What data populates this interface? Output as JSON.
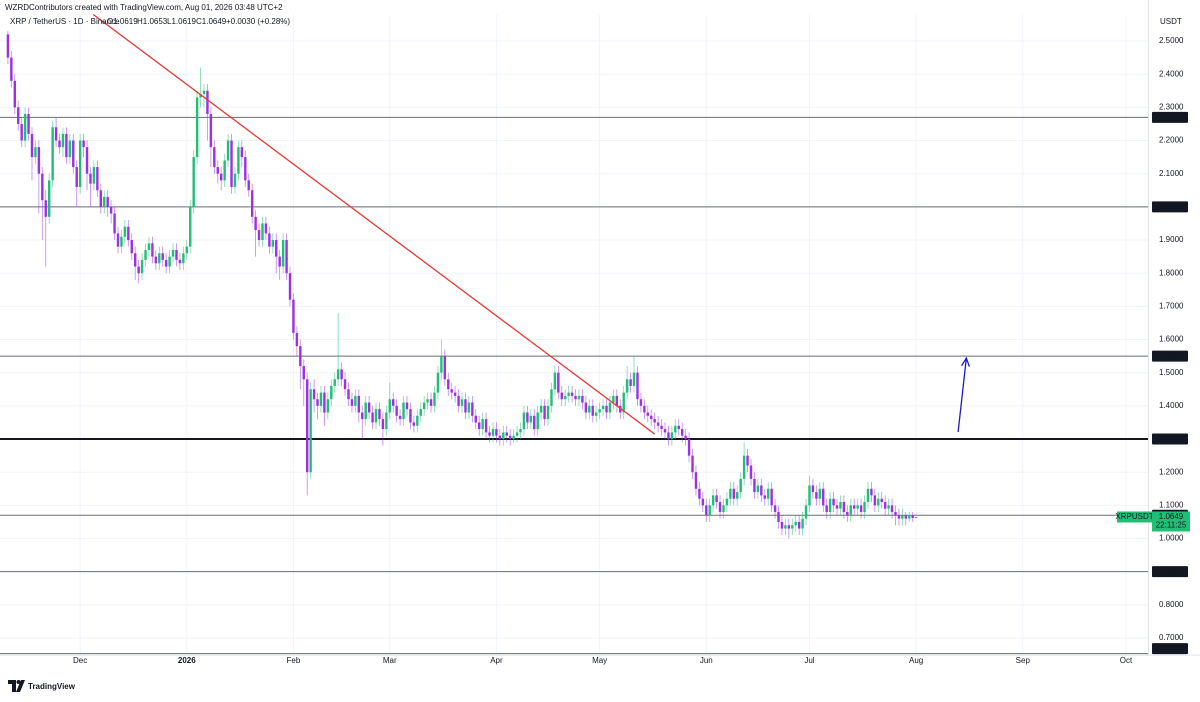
{
  "chart_data": {
    "type": "candlestick",
    "header": "WZRDContributors created with TradingView.com, Aug 01, 2026 03:48 UTC+2",
    "symbol": "XRP / TetherUS · 1D · Binance",
    "legend": [
      "O1.0619",
      "H1.0653",
      "L1.0619",
      "C1.0649",
      "+0.0030 (+0.28%)"
    ],
    "axis_unit": "USDT",
    "brand": "TradingView",
    "up_color": "#1fbf75",
    "down_color": "#9b30e6",
    "grid": true,
    "xlim": [
      -2.3,
      331.4
    ],
    "ylim": [
      0.65,
      2.58
    ],
    "xticks": [
      {
        "value": 21,
        "label": "Dec"
      },
      {
        "value": 52,
        "label": "2026"
      },
      {
        "value": 83,
        "label": "Feb"
      },
      {
        "value": 111,
        "label": "Mar"
      },
      {
        "value": 142,
        "label": "Apr"
      },
      {
        "value": 172,
        "label": "May"
      },
      {
        "value": 203,
        "label": "Jun"
      },
      {
        "value": 233,
        "label": "Jul"
      },
      {
        "value": 264,
        "label": "Aug"
      },
      {
        "value": 295,
        "label": "Sep"
      },
      {
        "value": 325,
        "label": "Oct"
      }
    ],
    "yticks": [
      {
        "value": 0.7,
        "label": "0.7000"
      },
      {
        "value": 0.8,
        "label": "0.8000"
      },
      {
        "value": 0.9,
        "label": "0.9000"
      },
      {
        "value": 1.0,
        "label": "1.0000"
      },
      {
        "value": 1.1,
        "label": "1.1000"
      },
      {
        "value": 1.2,
        "label": "1.2000"
      },
      {
        "value": 1.3,
        "label": "1.3000"
      },
      {
        "value": 1.4,
        "label": "1.4000"
      },
      {
        "value": 1.5,
        "label": "1.5000"
      },
      {
        "value": 1.6,
        "label": "1.6000"
      },
      {
        "value": 1.7,
        "label": "1.7000"
      },
      {
        "value": 1.8,
        "label": "1.8000"
      },
      {
        "value": 1.9,
        "label": "1.9000"
      },
      {
        "value": 2.0,
        "label": "2.0000"
      },
      {
        "value": 2.1,
        "label": "2.1000"
      },
      {
        "value": 2.2,
        "label": "2.2000"
      },
      {
        "value": 2.3,
        "label": "2.3000"
      },
      {
        "value": 2.4,
        "label": "2.4000"
      },
      {
        "value": 2.5,
        "label": "2.5000"
      }
    ],
    "levels": [
      {
        "value": 2.27,
        "label": "2.2700",
        "width": 1
      },
      {
        "value": 2.0,
        "label": "2.0000",
        "width": 1
      },
      {
        "value": 1.55,
        "label": "1.5500",
        "width": 1
      },
      {
        "value": 1.3,
        "label": "1.3000",
        "width": 2
      },
      {
        "value": 1.07,
        "label": "1.0700",
        "width": 1
      },
      {
        "value": 0.9,
        "label": "0.9000",
        "width": 1
      },
      {
        "value": 0.65,
        "label": "0.6500",
        "width": 1
      }
    ],
    "last_price": {
      "symbol": "XRPUSDT",
      "value": 1.0649,
      "countdown": "22:11:25"
    },
    "drawings": [
      {
        "kind": "trendline",
        "color": "#e53935",
        "x": [
          24.8,
          188
        ],
        "y": [
          2.58,
          1.315
        ]
      },
      {
        "kind": "arrow",
        "color": "#1a1acc",
        "x": [
          276.2,
          278.6
        ],
        "y": [
          1.321,
          1.544
        ]
      }
    ],
    "open": [
      2.52,
      2.45,
      2.38,
      2.3,
      2.25,
      2.2,
      2.28,
      2.22,
      2.15,
      2.18,
      2.1,
      2.02,
      1.97,
      2.08,
      2.24,
      2.2,
      2.18,
      2.22,
      2.15,
      2.2,
      2.12,
      2.06,
      2.2,
      2.18,
      2.1,
      2.07,
      2.12,
      2.05,
      2.0,
      2.03,
      2.0,
      1.98,
      1.92,
      1.88,
      1.91,
      1.94,
      1.9,
      1.86,
      1.82,
      1.8,
      1.84,
      1.87,
      1.89,
      1.85,
      1.83,
      1.86,
      1.84,
      1.82,
      1.85,
      1.87,
      1.84,
      1.83,
      1.86,
      1.88,
      2.0,
      2.15,
      2.33,
      2.34,
      2.35,
      2.28,
      2.18,
      2.12,
      2.1,
      2.08,
      2.14,
      2.2,
      2.06,
      2.1,
      2.18,
      2.15,
      2.08,
      2.05,
      1.97,
      1.93,
      1.9,
      1.95,
      1.92,
      1.88,
      1.9,
      1.85,
      1.82,
      1.9,
      1.8,
      1.72,
      1.62,
      1.58,
      1.52,
      1.48,
      1.2,
      1.45,
      1.42,
      1.4,
      1.44,
      1.38,
      1.42,
      1.46,
      1.48,
      1.51,
      1.48,
      1.45,
      1.42,
      1.4,
      1.43,
      1.38,
      1.36,
      1.41,
      1.38,
      1.35,
      1.39,
      1.36,
      1.33,
      1.38,
      1.42,
      1.4,
      1.37,
      1.36,
      1.41,
      1.39,
      1.35,
      1.34,
      1.37,
      1.39,
      1.41,
      1.42,
      1.4,
      1.44,
      1.5,
      1.55,
      1.48,
      1.45,
      1.44,
      1.43,
      1.4,
      1.42,
      1.38,
      1.41,
      1.37,
      1.35,
      1.33,
      1.36,
      1.32,
      1.31,
      1.33,
      1.31,
      1.3,
      1.32,
      1.31,
      1.3,
      1.31,
      1.32,
      1.33,
      1.38,
      1.35,
      1.37,
      1.33,
      1.38,
      1.4,
      1.36,
      1.4,
      1.45,
      1.5,
      1.44,
      1.42,
      1.43,
      1.44,
      1.43,
      1.42,
      1.43,
      1.41,
      1.38,
      1.4,
      1.37,
      1.38,
      1.39,
      1.4,
      1.38,
      1.41,
      1.43,
      1.4,
      1.38,
      1.44,
      1.48,
      1.46,
      1.5,
      1.42,
      1.4,
      1.38,
      1.37,
      1.36,
      1.35,
      1.34,
      1.33,
      1.32,
      1.3,
      1.32,
      1.34,
      1.33,
      1.31,
      1.3,
      1.25,
      1.2,
      1.15,
      1.12,
      1.1,
      1.07,
      1.1,
      1.13,
      1.11,
      1.08,
      1.1,
      1.12,
      1.15,
      1.12,
      1.14,
      1.18,
      1.25,
      1.22,
      1.18,
      1.14,
      1.16,
      1.13,
      1.12,
      1.15,
      1.1,
      1.08,
      1.05,
      1.03,
      1.04,
      1.03,
      1.04,
      1.05,
      1.03,
      1.06,
      1.1,
      1.16,
      1.14,
      1.12,
      1.15,
      1.1,
      1.08,
      1.12,
      1.1,
      1.09,
      1.11,
      1.08,
      1.07,
      1.1,
      1.09,
      1.1,
      1.08,
      1.11,
      1.15,
      1.13,
      1.1,
      1.12,
      1.11,
      1.09,
      1.1,
      1.08,
      1.07,
      1.06,
      1.07,
      1.06,
      1.07,
      1.0619
    ],
    "high": [
      2.53,
      2.47,
      2.4,
      2.32,
      2.27,
      2.3,
      2.3,
      2.24,
      2.2,
      2.2,
      2.12,
      2.05,
      2.1,
      2.26,
      2.27,
      2.22,
      2.24,
      2.24,
      2.22,
      2.22,
      2.14,
      2.22,
      2.22,
      2.2,
      2.12,
      2.14,
      2.14,
      2.07,
      2.05,
      2.05,
      2.02,
      2.0,
      1.94,
      1.93,
      1.96,
      1.96,
      1.92,
      1.88,
      1.84,
      1.86,
      1.89,
      1.91,
      1.91,
      1.87,
      1.88,
      1.88,
      1.86,
      1.87,
      1.89,
      1.89,
      1.86,
      1.88,
      1.9,
      2.02,
      2.17,
      2.35,
      2.42,
      2.37,
      2.37,
      2.3,
      2.2,
      2.14,
      2.12,
      2.16,
      2.22,
      2.22,
      2.12,
      2.2,
      2.2,
      2.17,
      2.1,
      2.07,
      1.99,
      1.95,
      1.97,
      1.97,
      1.94,
      1.92,
      1.92,
      1.87,
      1.92,
      1.92,
      1.82,
      1.74,
      1.64,
      1.6,
      1.54,
      1.5,
      1.47,
      1.48,
      1.44,
      1.46,
      1.46,
      1.44,
      1.48,
      1.5,
      1.68,
      1.53,
      1.5,
      1.47,
      1.44,
      1.45,
      1.45,
      1.4,
      1.43,
      1.43,
      1.4,
      1.41,
      1.41,
      1.38,
      1.4,
      1.47,
      1.44,
      1.42,
      1.39,
      1.43,
      1.43,
      1.41,
      1.37,
      1.39,
      1.41,
      1.43,
      1.44,
      1.44,
      1.46,
      1.52,
      1.6,
      1.57,
      1.5,
      1.47,
      1.46,
      1.45,
      1.44,
      1.44,
      1.43,
      1.43,
      1.39,
      1.37,
      1.38,
      1.38,
      1.34,
      1.35,
      1.35,
      1.33,
      1.34,
      1.34,
      1.33,
      1.33,
      1.34,
      1.35,
      1.4,
      1.4,
      1.39,
      1.39,
      1.4,
      1.42,
      1.42,
      1.42,
      1.47,
      1.52,
      1.52,
      1.46,
      1.45,
      1.46,
      1.46,
      1.45,
      1.45,
      1.45,
      1.43,
      1.42,
      1.42,
      1.4,
      1.41,
      1.42,
      1.42,
      1.43,
      1.45,
      1.45,
      1.42,
      1.46,
      1.52,
      1.5,
      1.55,
      1.52,
      1.44,
      1.42,
      1.4,
      1.39,
      1.38,
      1.37,
      1.36,
      1.35,
      1.34,
      1.34,
      1.36,
      1.36,
      1.35,
      1.33,
      1.32,
      1.27,
      1.22,
      1.17,
      1.14,
      1.12,
      1.12,
      1.15,
      1.15,
      1.13,
      1.12,
      1.14,
      1.17,
      1.17,
      1.16,
      1.2,
      1.29,
      1.27,
      1.24,
      1.2,
      1.18,
      1.18,
      1.15,
      1.17,
      1.17,
      1.12,
      1.1,
      1.07,
      1.06,
      1.06,
      1.06,
      1.07,
      1.07,
      1.08,
      1.12,
      1.19,
      1.18,
      1.16,
      1.17,
      1.17,
      1.12,
      1.14,
      1.14,
      1.12,
      1.13,
      1.13,
      1.1,
      1.12,
      1.12,
      1.12,
      1.12,
      1.13,
      1.17,
      1.17,
      1.15,
      1.14,
      1.14,
      1.13,
      1.12,
      1.12,
      1.1,
      1.09,
      1.09,
      1.08,
      1.08,
      1.08,
      1.0653
    ],
    "low": [
      2.43,
      2.36,
      2.28,
      2.23,
      2.18,
      2.18,
      2.2,
      2.08,
      2.13,
      1.98,
      1.9,
      1.82,
      1.95,
      2.06,
      2.18,
      2.16,
      2.15,
      2.13,
      2.13,
      2.1,
      2.0,
      2.04,
      2.15,
      2.05,
      2.0,
      2.05,
      2.03,
      1.98,
      1.98,
      1.97,
      1.95,
      1.9,
      1.86,
      1.86,
      1.89,
      1.88,
      1.84,
      1.78,
      1.77,
      1.78,
      1.82,
      1.85,
      1.83,
      1.81,
      1.81,
      1.82,
      1.8,
      1.8,
      1.83,
      1.82,
      1.81,
      1.81,
      1.84,
      1.86,
      1.98,
      2.13,
      2.3,
      2.3,
      2.2,
      2.12,
      2.1,
      2.07,
      2.05,
      2.06,
      2.12,
      2.04,
      2.04,
      2.08,
      2.12,
      2.06,
      2.03,
      1.95,
      1.85,
      1.88,
      1.88,
      1.9,
      1.86,
      1.86,
      1.8,
      1.78,
      1.8,
      1.78,
      1.7,
      1.6,
      1.55,
      1.45,
      1.4,
      1.13,
      1.18,
      1.38,
      1.36,
      1.38,
      1.34,
      1.36,
      1.4,
      1.44,
      1.46,
      1.46,
      1.43,
      1.4,
      1.38,
      1.38,
      1.35,
      1.3,
      1.34,
      1.36,
      1.33,
      1.33,
      1.34,
      1.28,
      1.31,
      1.36,
      1.38,
      1.35,
      1.34,
      1.34,
      1.37,
      1.33,
      1.32,
      1.32,
      1.35,
      1.37,
      1.39,
      1.38,
      1.38,
      1.42,
      1.48,
      1.46,
      1.43,
      1.42,
      1.41,
      1.38,
      1.38,
      1.36,
      1.36,
      1.35,
      1.33,
      1.31,
      1.31,
      1.3,
      1.29,
      1.29,
      1.29,
      1.28,
      1.28,
      1.29,
      1.28,
      1.29,
      1.29,
      1.3,
      1.31,
      1.33,
      1.33,
      1.31,
      1.31,
      1.36,
      1.34,
      1.34,
      1.38,
      1.43,
      1.42,
      1.4,
      1.4,
      1.41,
      1.41,
      1.4,
      1.4,
      1.39,
      1.36,
      1.36,
      1.35,
      1.35,
      1.36,
      1.37,
      1.36,
      1.36,
      1.39,
      1.38,
      1.36,
      1.36,
      1.42,
      1.44,
      1.44,
      1.4,
      1.38,
      1.36,
      1.35,
      1.34,
      1.33,
      1.32,
      1.31,
      1.3,
      1.28,
      1.28,
      1.3,
      1.31,
      1.29,
      1.28,
      1.23,
      1.18,
      1.13,
      1.1,
      1.08,
      1.05,
      1.05,
      1.08,
      1.09,
      1.06,
      1.06,
      1.08,
      1.1,
      1.1,
      1.1,
      1.12,
      1.16,
      1.2,
      1.16,
      1.12,
      1.12,
      1.11,
      1.1,
      1.1,
      1.08,
      1.06,
      1.03,
      1.01,
      1.01,
      1.0,
      1.01,
      1.02,
      1.01,
      1.01,
      1.04,
      1.08,
      1.12,
      1.1,
      1.1,
      1.08,
      1.06,
      1.06,
      1.08,
      1.07,
      1.07,
      1.06,
      1.05,
      1.05,
      1.07,
      1.07,
      1.06,
      1.06,
      1.09,
      1.11,
      1.08,
      1.08,
      1.09,
      1.07,
      1.07,
      1.06,
      1.04,
      1.04,
      1.04,
      1.04,
      1.05,
      1.05,
      1.0619
    ],
    "close": [
      2.45,
      2.38,
      2.3,
      2.25,
      2.2,
      2.28,
      2.22,
      2.15,
      2.18,
      2.1,
      2.02,
      1.97,
      2.08,
      2.24,
      2.2,
      2.18,
      2.22,
      2.15,
      2.2,
      2.12,
      2.06,
      2.2,
      2.18,
      2.1,
      2.07,
      2.12,
      2.05,
      2.0,
      2.03,
      2.0,
      1.98,
      1.92,
      1.88,
      1.91,
      1.94,
      1.9,
      1.86,
      1.82,
      1.8,
      1.84,
      1.87,
      1.89,
      1.85,
      1.83,
      1.86,
      1.84,
      1.82,
      1.85,
      1.87,
      1.84,
      1.83,
      1.86,
      1.88,
      2.0,
      2.15,
      2.33,
      2.34,
      2.35,
      2.28,
      2.18,
      2.12,
      2.1,
      2.08,
      2.14,
      2.2,
      2.06,
      2.1,
      2.18,
      2.15,
      2.08,
      2.05,
      1.97,
      1.93,
      1.9,
      1.95,
      1.92,
      1.88,
      1.9,
      1.85,
      1.82,
      1.9,
      1.8,
      1.72,
      1.62,
      1.58,
      1.52,
      1.48,
      1.2,
      1.45,
      1.42,
      1.4,
      1.44,
      1.38,
      1.42,
      1.46,
      1.48,
      1.51,
      1.48,
      1.45,
      1.42,
      1.4,
      1.43,
      1.38,
      1.36,
      1.41,
      1.38,
      1.35,
      1.39,
      1.36,
      1.33,
      1.38,
      1.42,
      1.4,
      1.37,
      1.36,
      1.41,
      1.39,
      1.35,
      1.34,
      1.37,
      1.39,
      1.41,
      1.42,
      1.4,
      1.44,
      1.5,
      1.55,
      1.48,
      1.45,
      1.44,
      1.43,
      1.4,
      1.42,
      1.38,
      1.41,
      1.37,
      1.35,
      1.33,
      1.36,
      1.32,
      1.31,
      1.33,
      1.31,
      1.3,
      1.32,
      1.31,
      1.3,
      1.31,
      1.32,
      1.33,
      1.38,
      1.35,
      1.37,
      1.33,
      1.38,
      1.4,
      1.36,
      1.4,
      1.45,
      1.5,
      1.44,
      1.42,
      1.43,
      1.44,
      1.43,
      1.42,
      1.43,
      1.41,
      1.38,
      1.4,
      1.37,
      1.38,
      1.39,
      1.4,
      1.38,
      1.41,
      1.43,
      1.4,
      1.38,
      1.44,
      1.48,
      1.46,
      1.5,
      1.42,
      1.4,
      1.38,
      1.37,
      1.36,
      1.35,
      1.34,
      1.33,
      1.32,
      1.3,
      1.32,
      1.34,
      1.33,
      1.31,
      1.3,
      1.25,
      1.2,
      1.15,
      1.12,
      1.1,
      1.07,
      1.1,
      1.13,
      1.11,
      1.08,
      1.1,
      1.12,
      1.15,
      1.12,
      1.14,
      1.18,
      1.25,
      1.22,
      1.18,
      1.14,
      1.16,
      1.13,
      1.12,
      1.15,
      1.1,
      1.08,
      1.05,
      1.03,
      1.04,
      1.03,
      1.04,
      1.05,
      1.03,
      1.06,
      1.1,
      1.16,
      1.14,
      1.12,
      1.15,
      1.1,
      1.08,
      1.12,
      1.1,
      1.09,
      1.11,
      1.08,
      1.07,
      1.1,
      1.09,
      1.1,
      1.08,
      1.11,
      1.15,
      1.13,
      1.1,
      1.12,
      1.11,
      1.09,
      1.1,
      1.08,
      1.07,
      1.06,
      1.07,
      1.06,
      1.07,
      1.0619,
      1.0649
    ]
  }
}
